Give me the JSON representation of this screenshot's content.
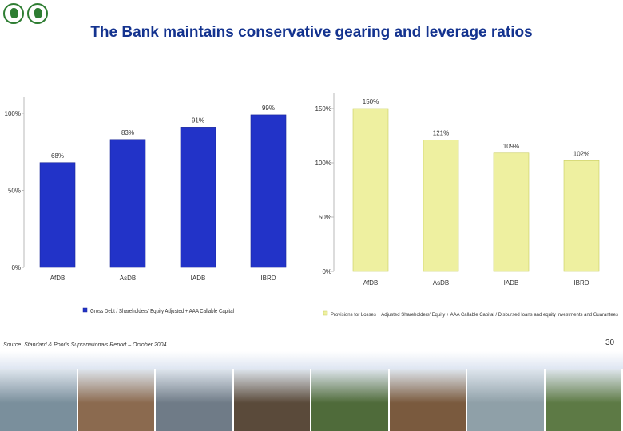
{
  "title": "The Bank maintains conservative gearing and leverage ratios",
  "source": "Source: Standard & Poor's Supranationals Report – October 2004",
  "page_number": "30",
  "photos": [
    {
      "icon": "building-photo-icon",
      "color": "#7a8f9c"
    },
    {
      "icon": "classroom-photo-icon",
      "color": "#8b6a4f"
    },
    {
      "icon": "port-ship-photo-icon",
      "color": "#6f7b87"
    },
    {
      "icon": "schoolboy-photo-icon",
      "color": "#5a4a3a"
    },
    {
      "icon": "forest-road-photo-icon",
      "color": "#4f6b3a"
    },
    {
      "icon": "market-bowls-photo-icon",
      "color": "#7a5a3e"
    },
    {
      "icon": "salt-flats-photo-icon",
      "color": "#8fa0a8"
    },
    {
      "icon": "farmers-field-photo-icon",
      "color": "#5d7a45"
    }
  ],
  "chart_data": [
    {
      "type": "bar",
      "categories": [
        "AfDB",
        "AsDB",
        "IADB",
        "IBRD"
      ],
      "values": [
        68,
        83,
        91,
        99
      ],
      "value_labels": [
        "68%",
        "83%",
        "91%",
        "99%"
      ],
      "ylim": [
        0,
        100
      ],
      "yticks": [
        0,
        50,
        100
      ],
      "ytick_labels": [
        "0%",
        "50%",
        "100%"
      ],
      "legend": "Gross Debt / Shareholders' Equity Adjusted + AAA Callable Capital",
      "legend_position": "bottom",
      "bar_color": "#2233c8"
    },
    {
      "type": "bar",
      "categories": [
        "AfDB",
        "AsDB",
        "IADB",
        "IBRD"
      ],
      "values": [
        150,
        121,
        109,
        102
      ],
      "value_labels": [
        "150%",
        "121%",
        "109%",
        "102%"
      ],
      "ylim": [
        0,
        150
      ],
      "yticks": [
        0,
        50,
        100,
        150
      ],
      "ytick_labels": [
        "0%",
        "50%",
        "100%",
        "150%"
      ],
      "legend": "Provisions for Losses + Adjusted Shareholders' Equity + AAA Callable Capital / Disbursed loans and equity investments and Guarantees",
      "legend_position": "bottom",
      "bar_color": "#eef0a0"
    }
  ]
}
